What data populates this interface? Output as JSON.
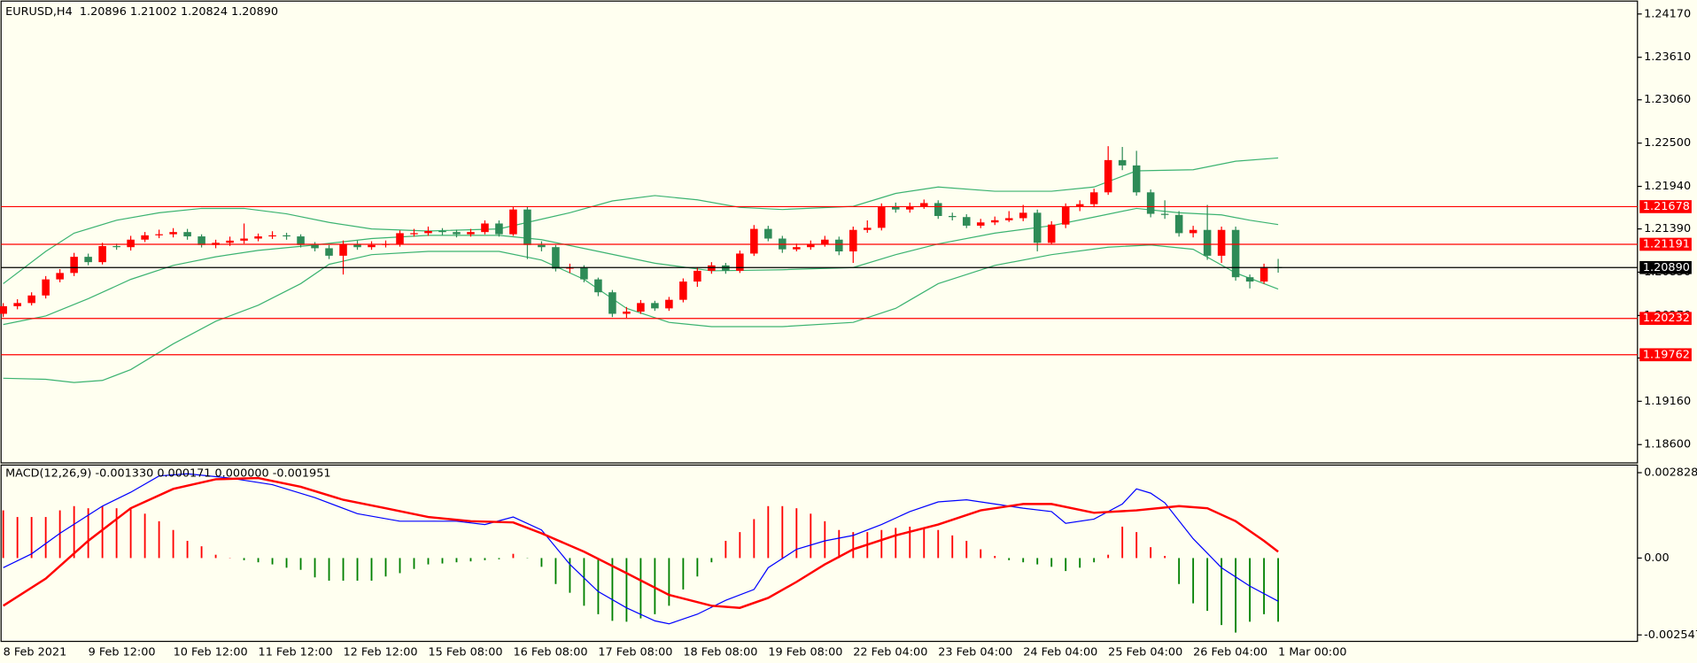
{
  "chart_data": [
    {
      "type": "candlestick",
      "title": "EURUSD,H4  1.20896 1.21002 1.20824 1.20890",
      "categories": [
        "8 Feb 2021",
        null,
        null,
        null,
        null,
        null,
        "9 Feb 12:00",
        null,
        null,
        null,
        null,
        null,
        "10 Feb 12:00",
        null,
        null,
        null,
        null,
        null,
        "11 Feb 12:00",
        null,
        null,
        null,
        null,
        null,
        "12 Feb 12:00",
        null,
        null,
        null,
        null,
        null,
        "15 Feb 08:00",
        null,
        null,
        null,
        null,
        null,
        "16 Feb 08:00",
        null,
        null,
        null,
        null,
        null,
        "17 Feb 08:00",
        null,
        null,
        null,
        null,
        null,
        "18 Feb 08:00",
        null,
        null,
        null,
        null,
        null,
        "19 Feb 08:00",
        null,
        null,
        null,
        null,
        null,
        "22 Feb 04:00",
        null,
        null,
        null,
        null,
        null,
        "23 Feb 04:00",
        null,
        null,
        null,
        null,
        null,
        "24 Feb 04:00",
        null,
        null,
        null,
        null,
        null,
        "25 Feb 04:00",
        null,
        null,
        null,
        null,
        null,
        "26 Feb 04:00",
        null,
        null,
        null,
        null,
        null,
        "1 Mar 00:00"
      ],
      "open": [
        1.20292,
        1.2039,
        1.20431,
        1.20529,
        1.20737,
        1.2082,
        1.21029,
        1.2096,
        1.21168,
        1.21154,
        1.21251,
        1.21307,
        1.21321,
        1.21349,
        1.21293,
        1.21182,
        1.2121,
        1.21238,
        1.21265,
        1.21293,
        1.21307,
        1.21293,
        1.21182,
        1.2114,
        1.21043,
        1.21196,
        1.21154,
        1.21182,
        1.21196,
        1.21335,
        1.21335,
        1.21363,
        1.21349,
        1.21321,
        1.21349,
        1.2146,
        1.21321,
        1.21641,
        1.21182,
        1.21154,
        1.20876,
        1.2089,
        1.20737,
        1.2057,
        1.20292,
        1.2032,
        1.20431,
        1.20362,
        1.20473,
        1.20709,
        1.20848,
        1.20918,
        1.20848,
        1.21071,
        1.2139,
        1.21265,
        1.21126,
        1.21154,
        1.21196,
        1.21251,
        1.21099,
        1.21377,
        1.21404,
        1.21682,
        1.21641,
        1.21682,
        1.21724,
        1.21557,
        1.21543,
        1.21432,
        1.21474,
        1.21502,
        1.21529,
        1.21599,
        1.2121,
        1.21446,
        1.21682,
        1.2171,
        1.21863,
        1.2228,
        1.22211,
        1.21863,
        1.21585,
        1.21571,
        1.21335,
        1.21377,
        1.21043,
        1.21377,
        1.20765,
        1.20709,
        1.20896
      ],
      "high": [
        1.2043,
        1.2048,
        1.2057,
        1.2078,
        1.2087,
        1.2108,
        1.2107,
        1.2121,
        1.212,
        1.213,
        1.2135,
        1.2138,
        1.214,
        1.2139,
        1.2132,
        1.2125,
        1.2129,
        1.2146,
        1.2133,
        1.2136,
        1.2134,
        1.2132,
        1.2122,
        1.2118,
        1.2124,
        1.2124,
        1.2123,
        1.2124,
        1.2137,
        1.2139,
        1.2142,
        1.214,
        1.2138,
        1.2139,
        1.215,
        1.215,
        1.2168,
        1.2168,
        1.2123,
        1.2118,
        1.2094,
        1.2092,
        1.2076,
        1.206,
        1.2038,
        1.2047,
        1.2046,
        1.2051,
        1.2075,
        1.2089,
        1.2096,
        1.2095,
        1.2111,
        1.2144,
        1.2143,
        1.213,
        1.212,
        1.2124,
        1.213,
        1.2129,
        1.2142,
        1.215,
        1.2172,
        1.2173,
        1.2173,
        1.2177,
        1.2176,
        1.216,
        1.2158,
        1.2152,
        1.2155,
        1.2162,
        1.217,
        1.2164,
        1.2149,
        1.2172,
        1.2176,
        1.2191,
        1.2246,
        1.2245,
        1.224,
        1.219,
        1.2176,
        1.2162,
        1.2143,
        1.217,
        1.2142,
        1.2142,
        1.208,
        1.2094,
        1.21002
      ],
      "low": [
        1.2025,
        1.2035,
        1.204,
        1.2049,
        1.207,
        1.2078,
        1.2092,
        1.2093,
        1.2112,
        1.2111,
        1.2122,
        1.2127,
        1.2128,
        1.2125,
        1.2115,
        1.2114,
        1.2117,
        1.212,
        1.2123,
        1.2126,
        1.2125,
        1.2115,
        1.211,
        1.21,
        1.208,
        1.2112,
        1.2112,
        1.2115,
        1.2116,
        1.2129,
        1.213,
        1.2131,
        1.2128,
        1.2129,
        1.2132,
        1.2129,
        1.213,
        1.21,
        1.211,
        1.2084,
        1.2082,
        1.207,
        1.2052,
        1.2025,
        1.2024,
        1.2029,
        1.2033,
        1.2033,
        1.2044,
        1.2064,
        1.2081,
        1.2081,
        1.2082,
        1.2104,
        1.2123,
        1.2108,
        1.211,
        1.2112,
        1.2116,
        1.2105,
        1.2095,
        1.2134,
        1.2137,
        1.216,
        1.216,
        1.2165,
        1.2152,
        1.215,
        1.214,
        1.214,
        1.2144,
        1.2148,
        1.2149,
        1.211,
        1.2119,
        1.214,
        1.2162,
        1.2167,
        1.2183,
        1.2215,
        1.2182,
        1.2154,
        1.2152,
        1.2129,
        1.2128,
        1.2099,
        1.2095,
        1.2072,
        1.2062,
        1.2068,
        1.20824
      ],
      "close": [
        1.2039,
        1.20431,
        1.20529,
        1.20737,
        1.2082,
        1.21029,
        1.2096,
        1.21168,
        1.21154,
        1.21251,
        1.21307,
        1.21321,
        1.21349,
        1.21293,
        1.21182,
        1.2121,
        1.21238,
        1.21265,
        1.21293,
        1.21307,
        1.21293,
        1.21182,
        1.2114,
        1.21043,
        1.21196,
        1.21154,
        1.21182,
        1.21196,
        1.21335,
        1.21335,
        1.21363,
        1.21349,
        1.21321,
        1.21349,
        1.2146,
        1.21321,
        1.21641,
        1.21182,
        1.21154,
        1.20876,
        1.2089,
        1.20737,
        1.2057,
        1.20292,
        1.2032,
        1.20431,
        1.20362,
        1.20473,
        1.20709,
        1.20848,
        1.20918,
        1.20848,
        1.21071,
        1.2139,
        1.21265,
        1.21126,
        1.21154,
        1.21196,
        1.21251,
        1.21099,
        1.21377,
        1.21404,
        1.21682,
        1.21641,
        1.21682,
        1.21724,
        1.21557,
        1.21543,
        1.21432,
        1.21474,
        1.21502,
        1.21529,
        1.21599,
        1.2121,
        1.21446,
        1.21682,
        1.2171,
        1.21863,
        1.2228,
        1.22211,
        1.21863,
        1.21585,
        1.21571,
        1.21335,
        1.21377,
        1.21043,
        1.21377,
        1.20765,
        1.20709,
        1.20896,
        1.2089
      ],
      "up_color": "#ff0000",
      "down_color": "#2e8b57",
      "series": [
        {
          "color": "#3cb371",
          "x": [
            0,
            3,
            5,
            8,
            11,
            14,
            17,
            20,
            23,
            26,
            30,
            35,
            37,
            40,
            43,
            46,
            49,
            52,
            55,
            60,
            63,
            66,
            70,
            74,
            77,
            80,
            84,
            87,
            90
          ],
          "values": [
            1.20682,
            1.21099,
            1.21335,
            1.21502,
            1.21599,
            1.21655,
            1.21655,
            1.21585,
            1.21474,
            1.2139,
            1.21363,
            1.2139,
            1.21474,
            1.21599,
            1.21752,
            1.21821,
            1.21766,
            1.21668,
            1.21641,
            1.21682,
            1.21849,
            1.21932,
            1.21877,
            1.21877,
            1.21932,
            1.22141,
            1.22155,
            1.22266,
            1.22308
          ]
        },
        {
          "color": "#3cb371",
          "x": [
            0,
            3,
            6,
            9,
            12,
            15,
            18,
            22,
            26,
            30,
            35,
            38,
            42,
            46,
            50,
            55,
            60,
            63,
            66,
            70,
            74,
            77,
            80,
            83,
            86,
            88,
            90
          ],
          "values": [
            1.20153,
            1.20264,
            1.20487,
            1.20737,
            1.20918,
            1.21029,
            1.21112,
            1.21182,
            1.21265,
            1.21307,
            1.21307,
            1.21251,
            1.21099,
            1.20946,
            1.20848,
            1.20862,
            1.2089,
            1.21057,
            1.21196,
            1.21335,
            1.21432,
            1.21543,
            1.21655,
            1.21599,
            1.21571,
            1.21502,
            1.21446
          ]
        },
        {
          "color": "#3cb371",
          "x": [
            0,
            3,
            5,
            7,
            9,
            12,
            15,
            18,
            21,
            23,
            26,
            30,
            35,
            38,
            41,
            44,
            47,
            50,
            55,
            60,
            63,
            66,
            70,
            74,
            78,
            81,
            84,
            87,
            89,
            90
          ],
          "values": [
            1.19458,
            1.19444,
            1.19403,
            1.1943,
            1.1957,
            1.19903,
            1.20195,
            1.20403,
            1.20682,
            1.20932,
            1.21057,
            1.21099,
            1.21099,
            1.20987,
            1.20737,
            1.20362,
            1.20181,
            1.20126,
            1.20126,
            1.20181,
            1.20362,
            1.20682,
            1.20918,
            1.21057,
            1.21154,
            1.21182,
            1.21126,
            1.2082,
            1.20682,
            1.20612
          ]
        }
      ],
      "hlines": [
        {
          "value": 1.21678,
          "color": "#ff0000"
        },
        {
          "value": 1.21191,
          "color": "#ff0000"
        },
        {
          "value": 1.20232,
          "color": "#ff0000"
        },
        {
          "value": 1.19762,
          "color": "#ff0000"
        },
        {
          "value": 1.2089,
          "label": "1.20890",
          "color": "#000000"
        }
      ],
      "ylim": [
        1.18363,
        1.24323
      ],
      "yticks": [
        {
          "value": 1.2417,
          "label": "1.24170"
        },
        {
          "value": 1.2361,
          "label": "1.23610"
        },
        {
          "value": 1.2306,
          "label": "1.23060"
        },
        {
          "value": 1.225,
          "label": "1.22500"
        },
        {
          "value": 1.2194,
          "label": "1.21940"
        },
        {
          "value": 1.2139,
          "label": "1.21390"
        },
        {
          "value": 1.2083,
          "label": "1.20830"
        },
        {
          "value": 1.2027,
          "label": "1.20270"
        },
        {
          "value": 1.1972,
          "label": "1.19720"
        },
        {
          "value": 1.1916,
          "label": "1.19160"
        },
        {
          "value": 1.186,
          "label": "1.18600"
        }
      ]
    },
    {
      "type": "macd",
      "title": "MACD(12,26,9) -0.001330 0.000171 0.000000 -0.001951",
      "values": [
        0.00158,
        0.00136,
        0.00136,
        0.00136,
        0.00158,
        0.00172,
        0.00165,
        0.00172,
        0.00165,
        0.00165,
        0.00147,
        0.00122,
        0.00093,
        0.00057,
        0.00039,
        0.00011,
        1e-05,
        -7e-05,
        -0.00014,
        -0.00021,
        -0.00032,
        -0.00039,
        -0.00064,
        -0.00075,
        -0.00075,
        -0.00075,
        -0.00075,
        -0.00061,
        -0.0005,
        -0.00036,
        -0.00021,
        -0.00018,
        -0.00014,
        -0.00011,
        -7e-05,
        -4e-05,
        0.00014,
        -1e-05,
        -0.00029,
        -0.00086,
        -0.00115,
        -0.00158,
        -0.00186,
        -0.00208,
        -0.00211,
        -0.002,
        -0.00186,
        -0.00158,
        -0.00104,
        -0.00061,
        -0.00014,
        0.00057,
        0.00086,
        0.00129,
        0.00172,
        0.00172,
        0.00165,
        0.00147,
        0.00122,
        0.00093,
        0.00086,
        0.00086,
        0.00093,
        0.001,
        0.00104,
        0.001,
        0.00093,
        0.00075,
        0.00057,
        0.00029,
        7e-05,
        -7e-05,
        -0.00014,
        -0.00021,
        -0.00029,
        -0.00043,
        -0.00032,
        -0.00014,
        0.00011,
        0.00104,
        0.00086,
        0.00036,
        7e-05,
        -0.00086,
        -0.0015,
        -0.00175,
        -0.00222,
        -0.00247,
        -0.00211,
        -0.00186,
        -0.00211
      ],
      "up_color": "#ff0000",
      "down_color": "#008000",
      "series": [
        {
          "color": "#0000ff",
          "x": [
            0,
            2,
            4,
            7,
            9,
            11,
            13,
            16,
            19,
            22,
            25,
            28,
            32,
            34,
            36,
            38,
            40,
            42,
            44,
            46,
            47,
            49,
            51,
            53,
            54,
            56,
            58,
            60,
            62,
            64,
            66,
            68,
            70,
            72,
            74,
            75,
            77,
            79,
            80,
            81,
            82,
            84,
            86,
            88,
            90
          ],
          "values": [
            -0.00032,
            0.00014,
            0.00082,
            0.00172,
            0.00218,
            0.00272,
            0.00279,
            0.00265,
            0.00243,
            0.002,
            0.00147,
            0.00122,
            0.00122,
            0.00111,
            0.00136,
            0.00093,
            -0.00021,
            -0.00111,
            -0.00165,
            -0.00208,
            -0.00218,
            -0.00186,
            -0.0014,
            -0.00104,
            -0.00032,
            0.00029,
            0.00057,
            0.00075,
            0.00111,
            0.00154,
            0.00186,
            0.00193,
            0.00179,
            0.00165,
            0.00154,
            0.00115,
            0.00129,
            0.00179,
            0.00229,
            0.00215,
            0.00183,
            0.00064,
            -0.00032,
            -0.00093,
            -0.00143
          ]
        },
        {
          "color": "#ff0000",
          "x": [
            0,
            3,
            6,
            9,
            12,
            15,
            18,
            21,
            24,
            27,
            30,
            33,
            36,
            38,
            41,
            44,
            47,
            50,
            52,
            54,
            56,
            58,
            60,
            63,
            66,
            69,
            72,
            74,
            77,
            80,
            83,
            85,
            87,
            89,
            90
          ],
          "values": [
            -0.00158,
            -0.00068,
            0.00057,
            0.00165,
            0.00229,
            0.00261,
            0.00265,
            0.00236,
            0.00193,
            0.00165,
            0.00136,
            0.00122,
            0.00118,
            0.00082,
            0.00021,
            -0.0005,
            -0.00122,
            -0.00158,
            -0.00165,
            -0.00132,
            -0.00079,
            -0.00021,
            0.00029,
            0.00075,
            0.00111,
            0.00158,
            0.00179,
            0.00179,
            0.0015,
            0.00158,
            0.00172,
            0.00165,
            0.00122,
            0.00057,
            0.00021
          ]
        }
      ],
      "ylim": [
        -0.00276,
        0.00308
      ],
      "yticks": [
        0.002828,
        {
          "value": 0,
          "label": "0.00"
        },
        -0.002547
      ]
    }
  ]
}
